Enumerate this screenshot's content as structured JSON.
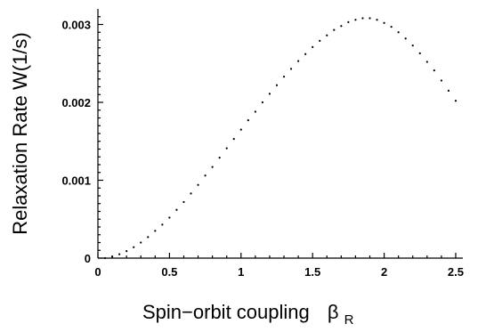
{
  "chart_data": {
    "type": "scatter",
    "xlabel": "Spin−orbit  coupling",
    "xlabel_symbol": "β",
    "xlabel_subscript": "R",
    "ylabel": "Relaxation Rate W(1/s)",
    "xlim": [
      0,
      2.55
    ],
    "ylim": [
      0,
      0.0032
    ],
    "x_ticks": [
      0,
      0.5,
      1,
      1.5,
      2,
      2.5
    ],
    "x_tick_labels": [
      "0",
      "0.5",
      "1",
      "1.5",
      "2",
      "2.5"
    ],
    "y_ticks": [
      0,
      0.001,
      0.002,
      0.003
    ],
    "y_tick_labels": [
      "0",
      "0.001",
      "0.002",
      "0.003"
    ],
    "grid": false,
    "series": [
      {
        "x": [
          0.05,
          0.1,
          0.15,
          0.2,
          0.25,
          0.3,
          0.35,
          0.4,
          0.45,
          0.5,
          0.55,
          0.6,
          0.65,
          0.7,
          0.75,
          0.8,
          0.85,
          0.9,
          0.95,
          1.0,
          1.05,
          1.1,
          1.15,
          1.2,
          1.25,
          1.3,
          1.35,
          1.4,
          1.45,
          1.5,
          1.55,
          1.6,
          1.65,
          1.7,
          1.75,
          1.8,
          1.85,
          1.9,
          1.95,
          2.0,
          2.05,
          2.1,
          2.15,
          2.2,
          2.25,
          2.3,
          2.35,
          2.4,
          2.45,
          2.5
        ],
        "y": [
          0.0,
          2e-05,
          5e-05,
          9e-05,
          0.00014,
          0.0002,
          0.00027,
          0.00035,
          0.00043,
          0.00052,
          0.00062,
          0.00072,
          0.00083,
          0.00094,
          0.00106,
          0.00117,
          0.00129,
          0.00141,
          0.00153,
          0.00165,
          0.00177,
          0.00188,
          0.002,
          0.00211,
          0.00222,
          0.00233,
          0.00243,
          0.00253,
          0.00262,
          0.00271,
          0.00279,
          0.00286,
          0.00293,
          0.00298,
          0.00303,
          0.00306,
          0.00308,
          0.00308,
          0.00306,
          0.00302,
          0.00297,
          0.0029,
          0.00282,
          0.00273,
          0.00263,
          0.00252,
          0.00241,
          0.00228,
          0.00215,
          0.00202
        ]
      }
    ]
  }
}
